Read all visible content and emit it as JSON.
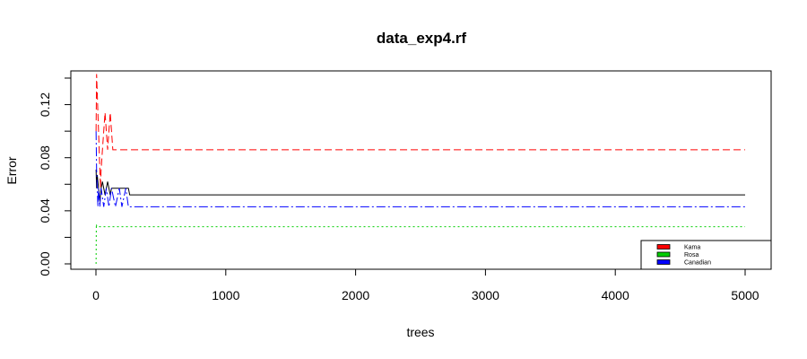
{
  "chart_data": {
    "type": "line",
    "title": "data_exp4.rf",
    "xlabel": "trees",
    "ylabel": "Error",
    "xlim": [
      0,
      5000
    ],
    "ylim": [
      0.0,
      0.14
    ],
    "x_ticks": [
      0,
      1000,
      2000,
      3000,
      4000,
      5000
    ],
    "x_tick_labels": [
      "0",
      "1000",
      "2000",
      "3000",
      "4000",
      "5000"
    ],
    "y_ticks": [
      0.0,
      0.02,
      0.04,
      0.06,
      0.08,
      0.1,
      0.12,
      0.14
    ],
    "y_tick_labels": [
      "0.00",
      "",
      "0.04",
      "",
      "0.08",
      "",
      "0.12",
      ""
    ],
    "grid": false,
    "legend_position": "bottom-right",
    "legend": [
      {
        "label": "Kama",
        "color": "#ff0000"
      },
      {
        "label": "Rosa",
        "color": "#00cd00"
      },
      {
        "label": "Canadian",
        "color": "#0000ff"
      }
    ],
    "series": [
      {
        "color": "#000000",
        "dash": "solid",
        "points": [
          [
            1,
            0.071
          ],
          [
            5,
            0.057
          ],
          [
            10,
            0.067
          ],
          [
            15,
            0.062
          ],
          [
            20,
            0.057
          ],
          [
            25,
            0.052
          ],
          [
            30,
            0.047
          ],
          [
            35,
            0.052
          ],
          [
            40,
            0.057
          ],
          [
            50,
            0.062
          ],
          [
            60,
            0.057
          ],
          [
            70,
            0.052
          ],
          [
            80,
            0.057
          ],
          [
            90,
            0.062
          ],
          [
            100,
            0.057
          ],
          [
            110,
            0.052
          ],
          [
            120,
            0.057
          ],
          [
            150,
            0.057
          ],
          [
            200,
            0.057
          ],
          [
            250,
            0.057
          ],
          [
            260,
            0.052
          ],
          [
            5000,
            0.052
          ]
        ]
      },
      {
        "color": "#ff0000",
        "dash": "8,4",
        "points": [
          [
            1,
            0.1
          ],
          [
            5,
            0.143
          ],
          [
            10,
            0.129
          ],
          [
            15,
            0.114
          ],
          [
            20,
            0.1
          ],
          [
            25,
            0.086
          ],
          [
            30,
            0.071
          ],
          [
            35,
            0.057
          ],
          [
            40,
            0.071
          ],
          [
            50,
            0.086
          ],
          [
            60,
            0.1
          ],
          [
            70,
            0.114
          ],
          [
            80,
            0.1
          ],
          [
            90,
            0.086
          ],
          [
            100,
            0.1
          ],
          [
            110,
            0.114
          ],
          [
            120,
            0.1
          ],
          [
            130,
            0.086
          ],
          [
            140,
            0.086
          ],
          [
            5000,
            0.086
          ]
        ]
      },
      {
        "color": "#00cd00",
        "dash": "2,3",
        "points": [
          [
            1,
            0.0
          ],
          [
            3,
            0.03
          ],
          [
            6,
            0.028
          ],
          [
            5000,
            0.028
          ]
        ]
      },
      {
        "color": "#0000ff",
        "dash": "10,3,2,3",
        "points": [
          [
            1,
            0.1
          ],
          [
            5,
            0.071
          ],
          [
            10,
            0.057
          ],
          [
            15,
            0.043
          ],
          [
            20,
            0.057
          ],
          [
            30,
            0.043
          ],
          [
            40,
            0.057
          ],
          [
            60,
            0.043
          ],
          [
            80,
            0.057
          ],
          [
            100,
            0.043
          ],
          [
            120,
            0.057
          ],
          [
            150,
            0.043
          ],
          [
            180,
            0.057
          ],
          [
            200,
            0.043
          ],
          [
            230,
            0.057
          ],
          [
            250,
            0.043
          ],
          [
            5000,
            0.043
          ]
        ]
      }
    ]
  }
}
